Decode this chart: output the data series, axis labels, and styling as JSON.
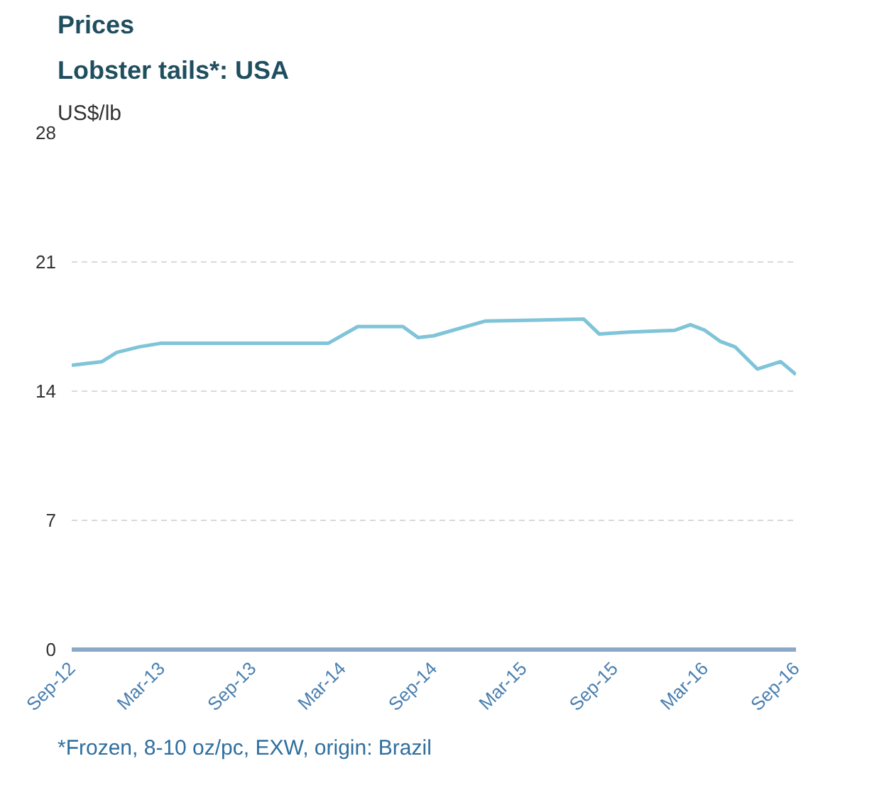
{
  "chart_data": {
    "type": "line",
    "title": "Prices",
    "subtitle": "Lobster tails*: USA",
    "ylabel": "US$/lb",
    "x": [
      "2012-09-01",
      "2012-11-01",
      "2012-12-01",
      "2013-01-15",
      "2013-03-01",
      "2014-02-01",
      "2014-04-01",
      "2014-07-01",
      "2014-08-01",
      "2014-09-01",
      "2014-12-15",
      "2015-07-01",
      "2015-08-01",
      "2015-10-01",
      "2016-01-01",
      "2016-02-01",
      "2016-03-01",
      "2016-04-01",
      "2016-05-01",
      "2016-06-15",
      "2016-08-01",
      "2016-09-01"
    ],
    "series": [
      {
        "color": "#7fc4d8",
        "values": [
          15.4,
          15.6,
          16.1,
          16.4,
          16.6,
          16.6,
          17.5,
          17.5,
          16.9,
          17.0,
          17.8,
          17.9,
          17.1,
          17.2,
          17.3,
          17.6,
          17.3,
          16.7,
          16.4,
          15.2,
          15.6,
          14.9
        ]
      }
    ],
    "xlim": [
      "2012-09-01",
      "2016-09-01"
    ],
    "xticks": [
      {
        "value": "2012-09-01",
        "label": "Sep-12"
      },
      {
        "value": "2013-03-01",
        "label": "Mar-13"
      },
      {
        "value": "2013-09-01",
        "label": "Sep-13"
      },
      {
        "value": "2014-03-01",
        "label": "Mar-14"
      },
      {
        "value": "2014-09-01",
        "label": "Sep-14"
      },
      {
        "value": "2015-03-01",
        "label": "Mar-15"
      },
      {
        "value": "2015-09-01",
        "label": "Sep-15"
      },
      {
        "value": "2016-03-01",
        "label": "Mar-16"
      },
      {
        "value": "2016-09-01",
        "label": "Sep-16"
      }
    ],
    "ylim": [
      0,
      28
    ],
    "yticks": [
      0,
      7,
      14,
      21,
      28
    ],
    "grid": "y",
    "line_style": "solid",
    "marker": "none",
    "annotations": [
      "*Frozen, 8-10 oz/pc, EXW, origin: Brazil"
    ]
  }
}
